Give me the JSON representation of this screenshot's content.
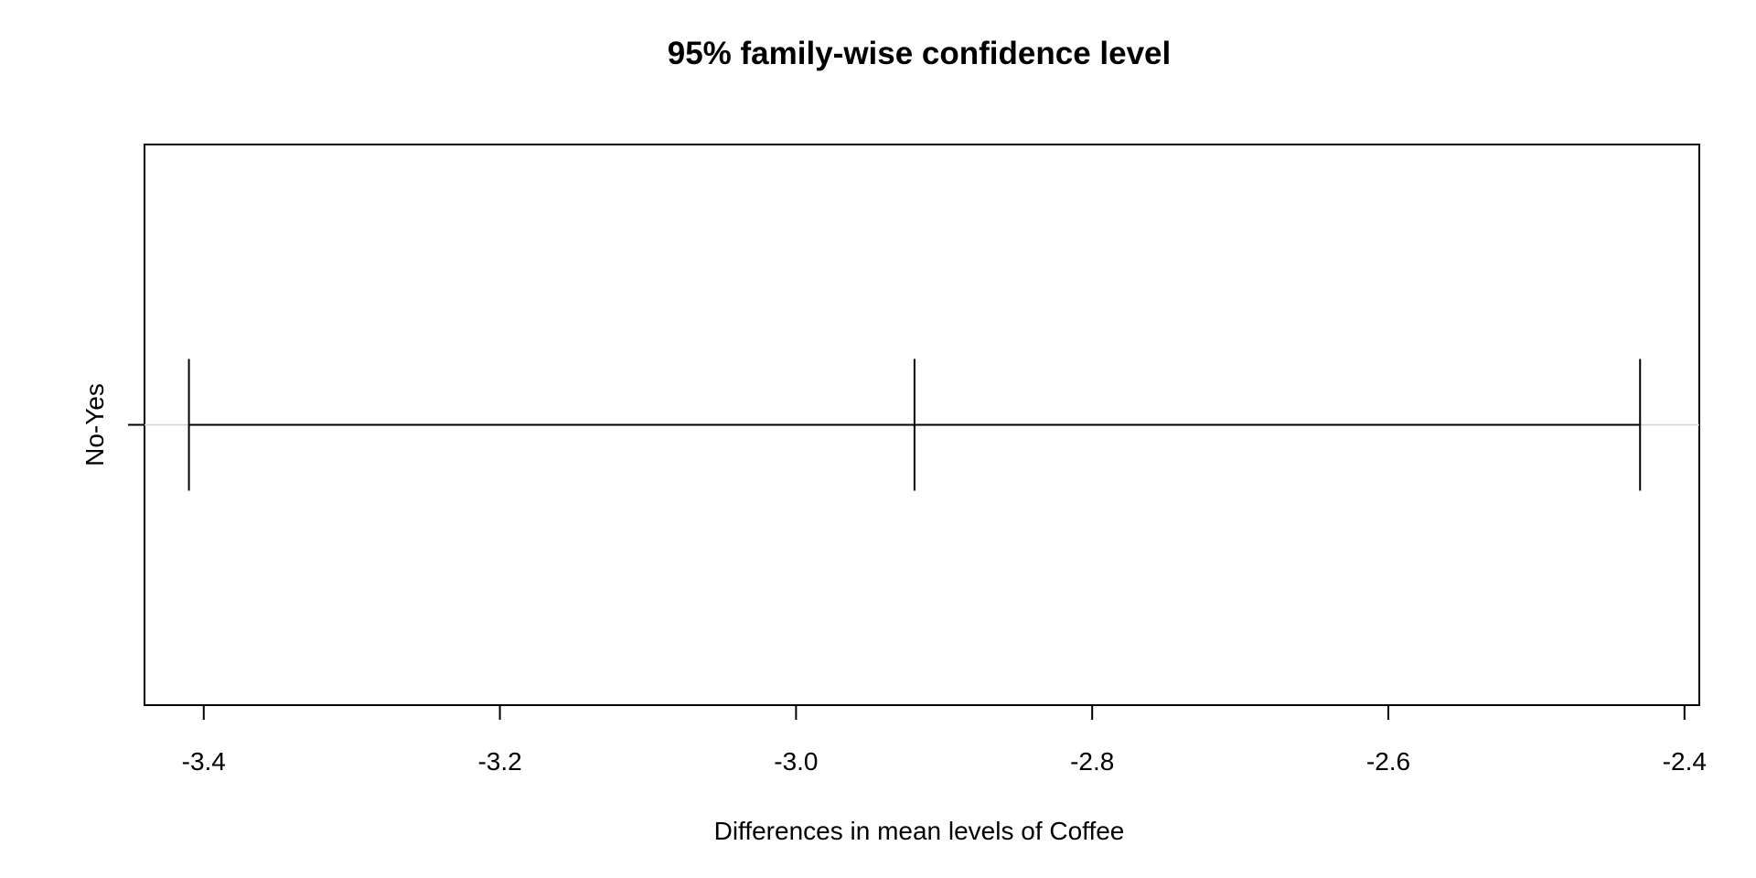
{
  "chart_data": {
    "type": "errorbar",
    "title": "95% family-wise confidence level",
    "xlabel": "Differences in mean levels of Coffee",
    "ylabel": "",
    "xlim": [
      -3.44,
      -2.39
    ],
    "x_ticks": [
      -3.4,
      -3.2,
      -3.0,
      -2.8,
      -2.6,
      -2.4
    ],
    "x_tick_labels": [
      "-3.4",
      "-3.2",
      "-3.0",
      "-2.8",
      "-2.6",
      "-2.4"
    ],
    "comparisons": [
      {
        "label": "No-Yes",
        "lower": -3.41,
        "estimate": -2.92,
        "upper": -2.43
      }
    ],
    "grid": false,
    "reference_line_color": "#d3d3d3",
    "line_color": "#000000"
  }
}
